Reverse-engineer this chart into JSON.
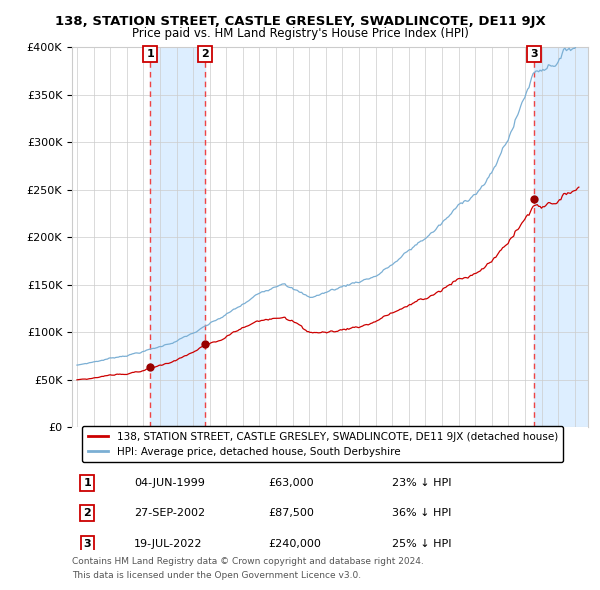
{
  "title": "138, STATION STREET, CASTLE GRESLEY, SWADLINCOTE, DE11 9JX",
  "subtitle": "Price paid vs. HM Land Registry's House Price Index (HPI)",
  "ylim": [
    0,
    400000
  ],
  "yticks": [
    0,
    50000,
    100000,
    150000,
    200000,
    250000,
    300000,
    350000,
    400000
  ],
  "ytick_labels": [
    "£0",
    "£50K",
    "£100K",
    "£150K",
    "£200K",
    "£250K",
    "£300K",
    "£350K",
    "£400K"
  ],
  "xlim_start": 1994.7,
  "xlim_end": 2025.8,
  "transactions": [
    {
      "label": "1",
      "date_str": "04-JUN-1999",
      "date_dec": 1999.42,
      "price": 63000,
      "pct_below": 23
    },
    {
      "label": "2",
      "date_str": "27-SEP-2002",
      "date_dec": 2002.74,
      "price": 87500,
      "pct_below": 36
    },
    {
      "label": "3",
      "date_str": "19-JUL-2022",
      "date_dec": 2022.54,
      "price": 240000,
      "pct_below": 25
    }
  ],
  "legend_property": "138, STATION STREET, CASTLE GRESLEY, SWADLINCOTE, DE11 9JX (detached house)",
  "legend_hpi": "HPI: Average price, detached house, South Derbyshire",
  "footer1": "Contains HM Land Registry data © Crown copyright and database right 2024.",
  "footer2": "This data is licensed under the Open Government Licence v3.0.",
  "property_color": "#cc0000",
  "hpi_color": "#7bafd4",
  "dot_color": "#990000",
  "vline_color": "#ee4444",
  "shade_color": "#ddeeff",
  "grid_color": "#cccccc",
  "box_color": "#cc0000",
  "background_color": "#ffffff",
  "table_rows": [
    {
      "num": "1",
      "date": "04-JUN-1999",
      "price": "£63,000",
      "pct": "23% ↓ HPI"
    },
    {
      "num": "2",
      "date": "27-SEP-2002",
      "price": "£87,500",
      "pct": "36% ↓ HPI"
    },
    {
      "num": "3",
      "date": "19-JUL-2022",
      "price": "£240,000",
      "pct": "25% ↓ HPI"
    }
  ]
}
